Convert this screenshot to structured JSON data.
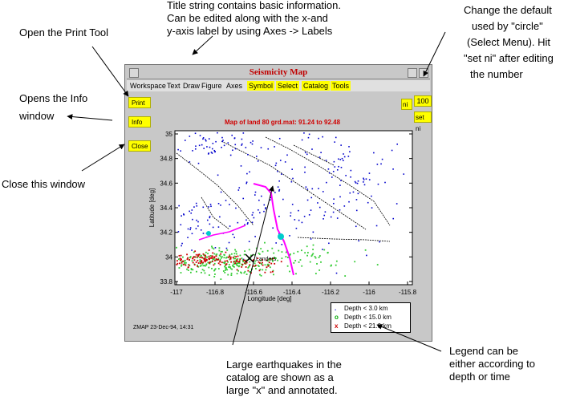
{
  "annotations": {
    "print_tool": "Open the Print Tool",
    "title_info": [
      "Title string contains basic information.",
      "Can be edited along with the x-and",
      "y-axis label by using Axes -> Labels"
    ],
    "change_default": [
      "Change the default",
      "used by \"circle\"",
      "(Select Menu). Hit",
      "\"set ni\" after editing",
      "the number"
    ],
    "info_window": [
      "Opens the Info",
      "window"
    ],
    "close_window": "Close this window",
    "large_eq": [
      "Large earthquakes in the",
      "catalog are shown as a",
      "large \"x\" and annotated."
    ],
    "legend_note": [
      "Legend can be",
      "either according to",
      "depth or time"
    ]
  },
  "window": {
    "title": "Seismicity Map",
    "menus": [
      {
        "label": "Workspace",
        "highlight": false
      },
      {
        "label": "Text",
        "highlight": false
      },
      {
        "label": "Draw",
        "highlight": false
      },
      {
        "label": "Figure",
        "highlight": false
      },
      {
        "label": "Axes",
        "highlight": false
      },
      {
        "label": "Symbol",
        "highlight": true
      },
      {
        "label": "Select",
        "highlight": true
      },
      {
        "label": "Catalog",
        "highlight": true
      },
      {
        "label": "Tools",
        "highlight": true
      }
    ],
    "buttons": {
      "print": "Print",
      "info": "Info",
      "close": "Close",
      "ni_label": "ni",
      "ni_value": "100",
      "set_ni": "set ni"
    },
    "map_title": "Map of   land  80  grd.mat: 91.24 to 92.48",
    "xlabel": "Longitude [deg]",
    "ylabel": "Latitude [deg]",
    "xticks": [
      "-117",
      "-116.8",
      "-116.6",
      "-116.4",
      "-116.2",
      "-116",
      "-115.8"
    ],
    "yticks": [
      "35",
      "34.8",
      "34.6",
      "34.4",
      "34.2",
      "34",
      "33.8"
    ],
    "event_label": "Landers",
    "legend": [
      {
        "marker": ".",
        "label": "Depth < 3.0 km",
        "color": "#0000cc"
      },
      {
        "marker": "o",
        "label": "Depth < 15.0 km",
        "color": "#00aa00"
      },
      {
        "marker": "x",
        "label": "Depth < 21.0 km",
        "color": "#cc0000"
      }
    ],
    "footer": "ZMAP 23-Dec-94, 14:31"
  },
  "colors": {
    "shallow": "#0000cc",
    "mid": "#33cc33",
    "deep": "#cc0000",
    "fault": "#000000",
    "highlight": "#ff00ff",
    "cyan": "#00cccc"
  }
}
